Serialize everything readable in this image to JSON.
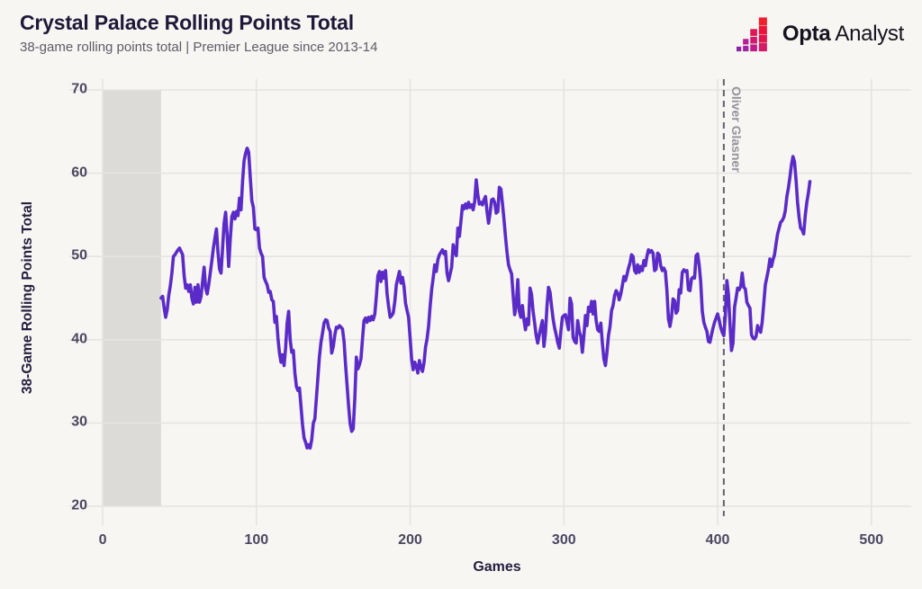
{
  "header": {
    "title": "Crystal Palace Rolling Points Total",
    "subtitle": "38-game rolling points total | Premier League since 2013-14",
    "logo": {
      "bold_text": "Opta",
      "regular_text": "Analyst",
      "mark_colors": [
        "#8a27a5",
        "#a321a2",
        "#b81e92",
        "#c01c87",
        "#d11a6b",
        "#de1853",
        "#d41967",
        "#e3164c",
        "#ec143a",
        "#f11e2e"
      ]
    }
  },
  "chart_data": {
    "type": "line",
    "title": "Crystal Palace Rolling Points Total",
    "subtitle": "38-game rolling points total | Premier League since 2013-14",
    "xlabel": "Games",
    "ylabel": "38-Game Rolling Points Total",
    "x_ticks": [
      0,
      100,
      200,
      300,
      400,
      500
    ],
    "y_ticks": [
      20,
      30,
      40,
      50,
      60,
      70
    ],
    "xlim": [
      -0.6,
      513.6
    ],
    "ylim": [
      20,
      70
    ],
    "grid": true,
    "legend": "none",
    "shaded_region": {
      "x0": 0,
      "x1": 38
    },
    "annotation": {
      "label": "Oliver Glasner",
      "x": 404
    },
    "colors": {
      "line": "#5b2bc7",
      "band": "#dcdbd8",
      "grid": "#e5e4e2",
      "dashed": "#63616b",
      "background": "#f7f6f3"
    },
    "series_x_start": 38,
    "series_x_step": 1,
    "values": [
      45,
      45.2,
      43.8,
      42.7,
      43.6,
      45.3,
      46.5,
      48,
      50,
      50.2,
      50.5,
      50.8,
      51,
      50.6,
      50.2,
      47.7,
      46.2,
      46.6,
      45.8,
      46.6,
      45,
      44.3,
      46.3,
      44.5,
      46.6,
      44.5,
      45.2,
      47,
      48.7,
      46.2,
      45.5,
      46.6,
      48,
      49.5,
      51,
      52.2,
      53.3,
      50.5,
      48.5,
      48,
      51,
      54,
      55.3,
      52.5,
      48.8,
      52,
      54.8,
      55.3,
      54.5,
      55.4,
      54.9,
      57,
      55.6,
      59,
      61.5,
      62.4,
      63,
      62.5,
      59.6,
      56.7,
      55.9,
      53.3,
      53.2,
      53.4,
      51,
      50.4,
      50,
      47.5,
      47,
      46.6,
      45.7,
      45.8,
      44.8,
      44.6,
      42.1,
      42.8,
      40.2,
      38.4,
      37.3,
      38.2,
      36.9,
      39,
      42,
      43.4,
      40,
      38.5,
      38.7,
      36,
      34.4,
      33.9,
      34.2,
      32,
      29.8,
      28.2,
      27.7,
      27,
      27.4,
      27,
      28,
      30,
      30.5,
      33,
      35.5,
      38,
      39.7,
      40.8,
      42,
      42.4,
      42.3,
      41.4,
      41,
      38.4,
      39.2,
      40.6,
      41.5,
      41.4,
      41.7,
      41.5,
      41.3,
      39.8,
      37,
      34.5,
      32,
      29.9,
      29,
      29.3,
      33,
      37.9,
      36.5,
      37,
      37.7,
      40.1,
      42.3,
      42.6,
      42.1,
      42.7,
      42.3,
      42.8,
      42.4,
      43.1,
      45.2,
      47.7,
      48.2,
      47,
      48.1,
      47.4,
      48.3,
      45.5,
      44,
      42.7,
      42.9,
      43.2,
      44.6,
      46.6,
      47.4,
      48.2,
      46.8,
      47.5,
      46.4,
      44.4,
      43.5,
      42.7,
      40.2,
      37.6,
      36.4,
      37.3,
      36.8,
      36,
      37.5,
      36.7,
      36.2,
      37.2,
      39.1,
      40.1,
      41.6,
      44,
      46,
      47.4,
      49,
      48.2,
      49.6,
      50.2,
      50.5,
      50.8,
      50.3,
      50.6,
      48,
      47.1,
      47.9,
      48.7,
      51.4,
      50.6,
      50.1,
      53.4,
      52.4,
      54.2,
      56.1,
      55.7,
      56.3,
      55.8,
      56.5,
      55.9,
      56.2,
      55.6,
      56.6,
      59.2,
      57.4,
      56.3,
      56.5,
      56.2,
      56.8,
      57.2,
      55.4,
      54,
      55.2,
      56.8,
      56.9,
      56.5,
      55.2,
      55.4,
      58.3,
      58.1,
      56.4,
      54.5,
      52.4,
      50.5,
      49,
      48.4,
      47.9,
      45.4,
      43,
      44.1,
      47.2,
      43.4,
      42.7,
      44.1,
      42.4,
      41.2,
      42.5,
      41.8,
      46.2,
      45.4,
      43.4,
      42,
      40.5,
      39.6,
      40.6,
      41.5,
      42.3,
      39.2,
      40.8,
      44,
      46.3,
      45.7,
      44,
      42.5,
      41.4,
      40.6,
      39.7,
      39,
      41,
      42.7,
      42.9,
      43,
      42.1,
      41.2,
      45,
      44.3,
      40.3,
      39.8,
      39.6,
      42.3,
      41,
      40.4,
      38.5,
      40.5,
      42.9,
      41.7,
      43.9,
      43.4,
      44.6,
      43.1,
      44.6,
      42.3,
      41.2,
      41,
      42,
      39.6,
      37.7,
      36.9,
      38.5,
      40.5,
      41.6,
      43.5,
      44.1,
      45.3,
      45.9,
      45.6,
      44.8,
      45.5,
      46.5,
      47.6,
      47.1,
      47.8,
      48.6,
      49.2,
      50.2,
      50,
      48.3,
      48,
      49,
      48.1,
      48.8,
      48.3,
      49.5,
      48.9,
      50,
      50.8,
      50.5,
      50.7,
      50.4,
      48.3,
      48.5,
      50.4,
      50.2,
      48.9,
      48.3,
      48.6,
      48.2,
      45.9,
      42.5,
      41.6,
      42.7,
      44.9,
      44.7,
      43.2,
      43.5,
      46,
      45.6,
      48.1,
      48.4,
      48.2,
      48.3,
      46,
      45.9,
      47.3,
      47.5,
      47.4,
      50.1,
      50.3,
      49,
      47,
      43.4,
      42.1,
      41.5,
      41,
      39.8,
      39.7,
      40.6,
      41.4,
      42.1,
      42.6,
      43.1,
      42.4,
      41.5,
      40.9,
      40.5,
      43,
      47.1,
      45.5,
      42,
      38.7,
      39.6,
      43.9,
      45,
      46.2,
      46,
      46.4,
      48,
      46.3,
      46.1,
      44.5,
      44.1,
      43.8,
      40.6,
      40.2,
      40.1,
      40.4,
      41.7,
      41.2,
      40.9,
      42.1,
      44.4,
      46.6,
      47.5,
      48.4,
      49.7,
      48.8,
      49.6,
      50.2,
      51.5,
      52.7,
      53.4,
      54.1,
      54.3,
      54.7,
      55.5,
      57.2,
      58.2,
      59.5,
      61,
      62,
      61.4,
      59.2,
      56.5,
      54.7,
      53.4,
      53.2,
      52.7,
      55,
      56.5,
      57.6,
      59
    ]
  }
}
